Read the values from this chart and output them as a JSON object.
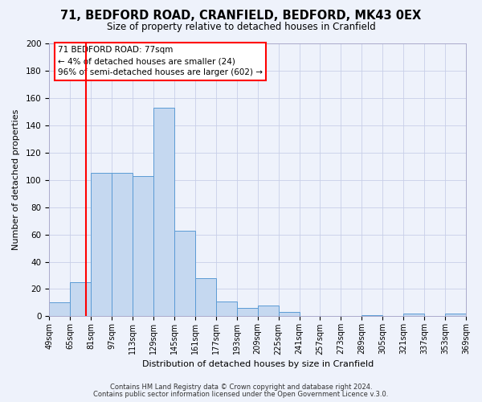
{
  "title": "71, BEDFORD ROAD, CRANFIELD, BEDFORD, MK43 0EX",
  "subtitle": "Size of property relative to detached houses in Cranfield",
  "xlabel": "Distribution of detached houses by size in Cranfield",
  "ylabel": "Number of detached properties",
  "bar_color": "#c5d8f0",
  "bar_edge_color": "#5b9bd5",
  "background_color": "#eef2fb",
  "grid_color": "#c8cfe8",
  "vline_x": 77,
  "vline_color": "red",
  "bin_edges": [
    49,
    65,
    81,
    97,
    113,
    129,
    145,
    161,
    177,
    193,
    209,
    225,
    241,
    257,
    273,
    289,
    305,
    321,
    337,
    353,
    369
  ],
  "bin_labels": [
    "49sqm",
    "65sqm",
    "81sqm",
    "97sqm",
    "113sqm",
    "129sqm",
    "145sqm",
    "161sqm",
    "177sqm",
    "193sqm",
    "209sqm",
    "225sqm",
    "241sqm",
    "257sqm",
    "273sqm",
    "289sqm",
    "305sqm",
    "321sqm",
    "337sqm",
    "353sqm",
    "369sqm"
  ],
  "counts": [
    10,
    25,
    105,
    105,
    103,
    153,
    63,
    28,
    11,
    6,
    8,
    3,
    0,
    0,
    0,
    1,
    0,
    2,
    0,
    2
  ],
  "ylim": [
    0,
    200
  ],
  "yticks": [
    0,
    20,
    40,
    60,
    80,
    100,
    120,
    140,
    160,
    180,
    200
  ],
  "annotation_title": "71 BEDFORD ROAD: 77sqm",
  "annotation_line1": "← 4% of detached houses are smaller (24)",
  "annotation_line2": "96% of semi-detached houses are larger (602) →",
  "annotation_box_color": "white",
  "annotation_box_edge_color": "red",
  "footnote1": "Contains HM Land Registry data © Crown copyright and database right 2024.",
  "footnote2": "Contains public sector information licensed under the Open Government Licence v.3.0."
}
